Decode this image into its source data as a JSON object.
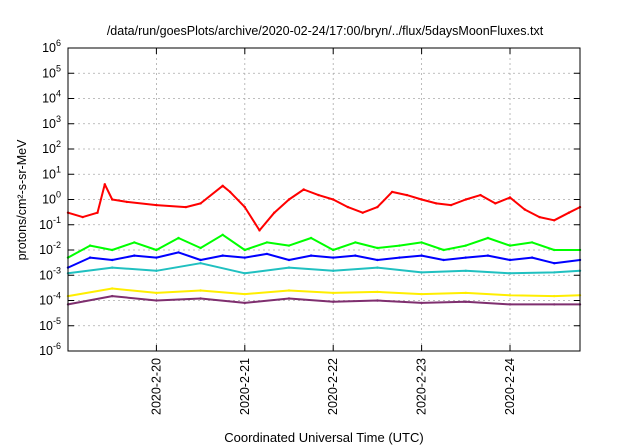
{
  "chart_data": {
    "type": "line",
    "title": "/data/run/goesPlots/archive/2020-02-24/17:00/bryn/../flux/5daysMoonFluxes.txt",
    "xlabel": "Coordinated Universal Time (UTC)",
    "ylabel": "protons/cm²-s-sr-MeV",
    "yscale": "log",
    "ylim": [
      "1e-6",
      "1e6"
    ],
    "xlim": [
      "2020-02-19 00:00",
      "2020-02-24 19:00"
    ],
    "grid": "dashed",
    "legend": "none",
    "xtick_labels": [
      "2020-2-20",
      "2020-2-21",
      "2020-2-22",
      "2020-2-23",
      "2020-2-24"
    ],
    "ytick_labels": [
      {
        "base": "10",
        "exp": "-6"
      },
      {
        "base": "10",
        "exp": "-5"
      },
      {
        "base": "10",
        "exp": "-4"
      },
      {
        "base": "10",
        "exp": "-3"
      },
      {
        "base": "10",
        "exp": "-2"
      },
      {
        "base": "10",
        "exp": "-1"
      },
      {
        "base": "10",
        "exp": "0"
      },
      {
        "base": "10",
        "exp": "1"
      },
      {
        "base": "10",
        "exp": "2"
      },
      {
        "base": "10",
        "exp": "3"
      },
      {
        "base": "10",
        "exp": "4"
      },
      {
        "base": "10",
        "exp": "5"
      },
      {
        "base": "10",
        "exp": "6"
      }
    ],
    "series": [
      {
        "color": "#ff0000",
        "x": [
          "2020-02-19 00:00",
          "2020-02-19 04:00",
          "2020-02-19 08:00",
          "2020-02-19 10:00",
          "2020-02-19 12:00",
          "2020-02-19 16:00",
          "2020-02-20 00:00",
          "2020-02-20 08:00",
          "2020-02-20 12:00",
          "2020-02-20 18:00",
          "2020-02-20 20:00",
          "2020-02-21 00:00",
          "2020-02-21 04:00",
          "2020-02-21 08:00",
          "2020-02-21 12:00",
          "2020-02-21 16:00",
          "2020-02-21 20:00",
          "2020-02-22 00:00",
          "2020-02-22 04:00",
          "2020-02-22 08:00",
          "2020-02-22 12:00",
          "2020-02-22 16:00",
          "2020-02-22 20:00",
          "2020-02-23 00:00",
          "2020-02-23 04:00",
          "2020-02-23 08:00",
          "2020-02-23 12:00",
          "2020-02-23 16:00",
          "2020-02-23 20:00",
          "2020-02-24 00:00",
          "2020-02-24 04:00",
          "2020-02-24 08:00",
          "2020-02-24 12:00",
          "2020-02-24 16:00",
          "2020-02-24 19:00"
        ],
        "values": [
          0.3,
          0.2,
          0.3,
          4.0,
          1.0,
          0.8,
          0.6,
          0.5,
          0.7,
          3.5,
          2.0,
          0.5,
          0.06,
          0.3,
          1.0,
          2.5,
          1.5,
          1.0,
          0.5,
          0.3,
          0.5,
          2.0,
          1.5,
          1.0,
          0.7,
          0.6,
          1.0,
          1.5,
          0.7,
          1.2,
          0.4,
          0.2,
          0.15,
          0.3,
          0.5
        ]
      },
      {
        "color": "#00ff00",
        "x": [
          "2020-02-19 00:00",
          "2020-02-19 06:00",
          "2020-02-19 12:00",
          "2020-02-19 18:00",
          "2020-02-20 00:00",
          "2020-02-20 06:00",
          "2020-02-20 12:00",
          "2020-02-20 18:00",
          "2020-02-21 00:00",
          "2020-02-21 06:00",
          "2020-02-21 12:00",
          "2020-02-21 18:00",
          "2020-02-22 00:00",
          "2020-02-22 06:00",
          "2020-02-22 12:00",
          "2020-02-22 18:00",
          "2020-02-23 00:00",
          "2020-02-23 06:00",
          "2020-02-23 12:00",
          "2020-02-23 18:00",
          "2020-02-24 00:00",
          "2020-02-24 06:00",
          "2020-02-24 12:00",
          "2020-02-24 19:00"
        ],
        "values": [
          0.005,
          0.015,
          0.01,
          0.02,
          0.01,
          0.03,
          0.012,
          0.04,
          0.01,
          0.02,
          0.015,
          0.03,
          0.01,
          0.02,
          0.012,
          0.015,
          0.02,
          0.01,
          0.015,
          0.03,
          0.015,
          0.02,
          0.01,
          0.01
        ]
      },
      {
        "color": "#0000ff",
        "x": [
          "2020-02-19 00:00",
          "2020-02-19 06:00",
          "2020-02-19 12:00",
          "2020-02-19 18:00",
          "2020-02-20 00:00",
          "2020-02-20 06:00",
          "2020-02-20 12:00",
          "2020-02-20 18:00",
          "2020-02-21 00:00",
          "2020-02-21 06:00",
          "2020-02-21 12:00",
          "2020-02-21 18:00",
          "2020-02-22 00:00",
          "2020-02-22 06:00",
          "2020-02-22 12:00",
          "2020-02-22 18:00",
          "2020-02-23 00:00",
          "2020-02-23 06:00",
          "2020-02-23 12:00",
          "2020-02-23 18:00",
          "2020-02-24 00:00",
          "2020-02-24 06:00",
          "2020-02-24 12:00",
          "2020-02-24 19:00"
        ],
        "values": [
          0.002,
          0.005,
          0.004,
          0.006,
          0.005,
          0.008,
          0.004,
          0.006,
          0.005,
          0.007,
          0.004,
          0.006,
          0.005,
          0.006,
          0.004,
          0.005,
          0.006,
          0.004,
          0.005,
          0.006,
          0.004,
          0.005,
          0.003,
          0.004
        ]
      },
      {
        "color": "#20c0c0",
        "x": [
          "2020-02-19 00:00",
          "2020-02-19 12:00",
          "2020-02-20 00:00",
          "2020-02-20 12:00",
          "2020-02-21 00:00",
          "2020-02-21 12:00",
          "2020-02-22 00:00",
          "2020-02-22 12:00",
          "2020-02-23 00:00",
          "2020-02-23 12:00",
          "2020-02-24 00:00",
          "2020-02-24 12:00",
          "2020-02-24 19:00"
        ],
        "values": [
          0.0012,
          0.002,
          0.0015,
          0.003,
          0.0012,
          0.002,
          0.0015,
          0.002,
          0.0013,
          0.0015,
          0.0012,
          0.0013,
          0.0015
        ]
      },
      {
        "color": "#ffee00",
        "x": [
          "2020-02-19 00:00",
          "2020-02-19 12:00",
          "2020-02-20 00:00",
          "2020-02-20 12:00",
          "2020-02-21 00:00",
          "2020-02-21 12:00",
          "2020-02-22 00:00",
          "2020-02-22 12:00",
          "2020-02-23 00:00",
          "2020-02-23 12:00",
          "2020-02-24 00:00",
          "2020-02-24 12:00",
          "2020-02-24 19:00"
        ],
        "values": [
          0.00015,
          0.0003,
          0.0002,
          0.00025,
          0.00018,
          0.00025,
          0.0002,
          0.00022,
          0.00018,
          0.0002,
          0.00016,
          0.00015,
          0.00016
        ]
      },
      {
        "color": "#7f2f6f",
        "x": [
          "2020-02-19 00:00",
          "2020-02-19 12:00",
          "2020-02-20 00:00",
          "2020-02-20 12:00",
          "2020-02-21 00:00",
          "2020-02-21 12:00",
          "2020-02-22 00:00",
          "2020-02-22 12:00",
          "2020-02-23 00:00",
          "2020-02-23 12:00",
          "2020-02-24 00:00",
          "2020-02-24 12:00",
          "2020-02-24 19:00"
        ],
        "values": [
          7e-05,
          0.00015,
          0.0001,
          0.00012,
          8e-05,
          0.00012,
          9e-05,
          0.0001,
          8e-05,
          9e-05,
          7e-05,
          7e-05,
          7e-05
        ]
      }
    ]
  }
}
